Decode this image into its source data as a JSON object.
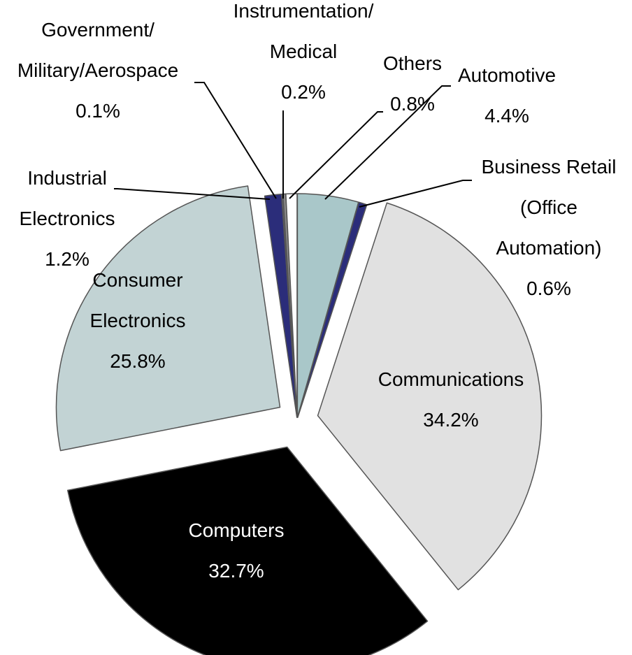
{
  "chart_data": {
    "type": "pie",
    "slices": [
      {
        "id": "automotive",
        "lines": [
          "Automotive",
          "4.4%"
        ],
        "value": 4.4,
        "color": "#a9c7c9"
      },
      {
        "id": "business-retail",
        "lines": [
          "Business Retail",
          "(Office",
          "Automation)",
          "0.6%"
        ],
        "value": 0.6,
        "color": "#2b2d7a"
      },
      {
        "id": "communications",
        "lines": [
          "Communications",
          "34.2%"
        ],
        "value": 34.2,
        "color": "#e1e1e1"
      },
      {
        "id": "computers",
        "lines": [
          "Computers",
          "32.7%"
        ],
        "value": 32.7,
        "color": "#000000"
      },
      {
        "id": "consumer-electronics",
        "lines": [
          "Consumer",
          "Electronics",
          "25.8%"
        ],
        "value": 25.8,
        "color": "#c2d3d4"
      },
      {
        "id": "industrial-electronics",
        "lines": [
          "Industrial",
          "Electronics",
          "1.2%"
        ],
        "value": 1.2,
        "color": "#2b2d7a"
      },
      {
        "id": "government-military-aerospace",
        "lines": [
          "Government/",
          "Military/Aerospace",
          "0.1%"
        ],
        "value": 0.1,
        "color": "#6b6b8a"
      },
      {
        "id": "instrumentation-medical",
        "lines": [
          "Instrumentation/",
          "Medical",
          "0.2%"
        ],
        "value": 0.2,
        "color": "#8a8a8a"
      },
      {
        "id": "others",
        "lines": [
          "Others",
          "0.8%"
        ],
        "value": 0.8,
        "color": "#ffffff"
      }
    ]
  }
}
